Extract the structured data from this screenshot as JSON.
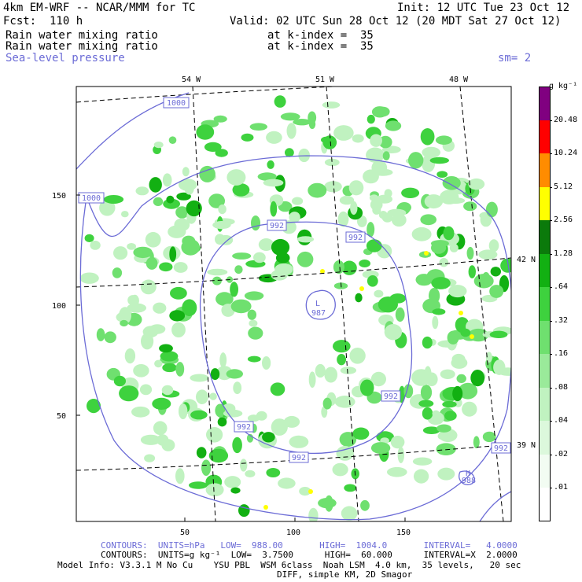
{
  "header": {
    "model_title": "4km EM-WRF -- NCAR/MMM for TC",
    "init": "Init: 12 UTC Tue 23 Oct 12",
    "forecast": "Fcst:  110 h",
    "valid": "Valid: 02 UTC Sun 28 Oct 12 (20 MDT Sat 27 Oct 12)",
    "field1_name": "Rain water mixing ratio",
    "field1_level": "at k-index =  35",
    "field2_name": "Rain water mixing ratio",
    "field2_level": "at k-index =  35",
    "field3_name": "Sea-level pressure",
    "smoothing": "sm= 2"
  },
  "map": {
    "longitude_labels": [
      "54 W",
      "51 W",
      "48 W"
    ],
    "latitude_labels": [
      "42 N",
      "39 N"
    ],
    "y_ticks": [
      "150",
      "100",
      "50"
    ],
    "x_ticks": [
      "50",
      "100",
      "150"
    ],
    "isobar_labels": [
      "1000",
      "1000",
      "992",
      "992",
      "992",
      "992",
      "992",
      "992"
    ],
    "low_center": {
      "symbol": "L",
      "value": "987"
    },
    "high_center": {
      "symbol": "H",
      "value": "988"
    },
    "colors": {
      "isobar": "#6b6bd6",
      "graticule": "#000000"
    }
  },
  "colorbar": {
    "units": "g kg⁻¹",
    "levels": [
      "20.48",
      "10.24",
      "5.12",
      "2.56",
      "1.28",
      ".64",
      ".32",
      ".16",
      ".08",
      ".04",
      ".02",
      ".01"
    ],
    "colors": [
      "#800080",
      "#ff0000",
      "#ff8c00",
      "#ffff00",
      "#0b7a0b",
      "#12b012",
      "#3ed23e",
      "#6fe06f",
      "#9aea9a",
      "#c0f2c0",
      "#dcf8dc",
      "#f2fcf2",
      "#ffffff"
    ]
  },
  "footer": {
    "contours1": "CONTOURS:  UNITS=hPa   LOW=  988.00       HIGH=  1004.0       INTERVAL=   4.0000",
    "contours2": "CONTOURS:  UNITS=g kg⁻¹  LOW=  3.7500      HIGH=  60.000      INTERVAL=X  2.0000",
    "model_info": "Model Info: V3.3.1 M No Cu    YSU PBL  WSM 6class  Noah LSM  4.0 km,  35 levels,   20 sec",
    "model_info2": "DIFF, simple KM, 2D Smagor"
  }
}
